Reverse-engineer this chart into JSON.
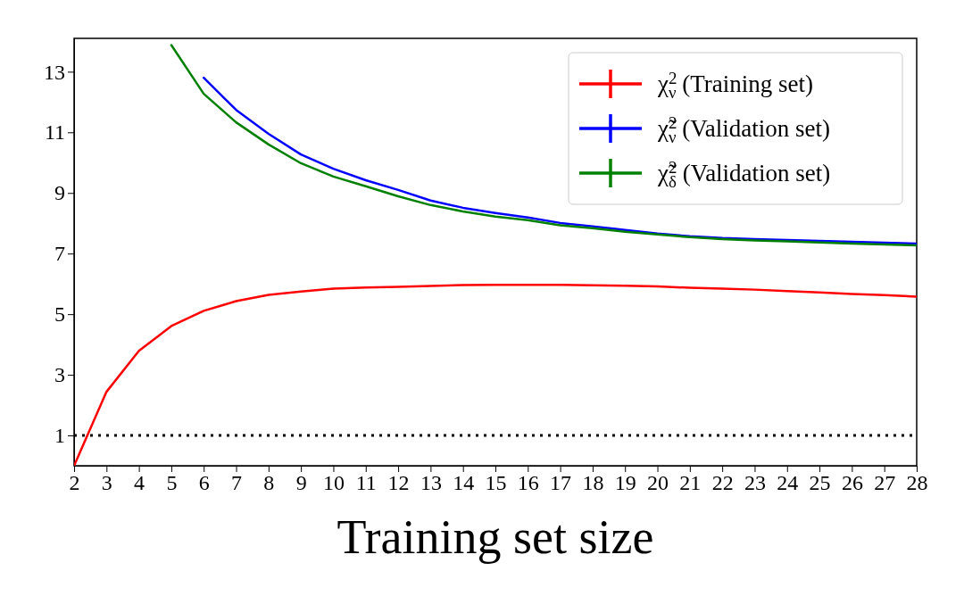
{
  "chart_data": {
    "type": "line",
    "xlabel": "Training set size",
    "x": [
      2,
      3,
      4,
      5,
      6,
      7,
      8,
      9,
      10,
      11,
      12,
      13,
      14,
      15,
      16,
      17,
      18,
      19,
      20,
      21,
      22,
      23,
      24,
      25,
      26,
      27,
      28
    ],
    "xlim": [
      2,
      28
    ],
    "xticks": [
      2,
      3,
      4,
      5,
      6,
      7,
      8,
      9,
      10,
      11,
      12,
      13,
      14,
      15,
      16,
      17,
      18,
      19,
      20,
      21,
      22,
      23,
      24,
      25,
      26,
      27,
      28
    ],
    "ylim": [
      0,
      14.1
    ],
    "yticks": [
      1,
      3,
      5,
      7,
      9,
      11,
      13
    ],
    "series": [
      {
        "name": "χ$^{2}$$_{ν}$ (Training set)",
        "color": "#ff0000",
        "values": [
          0.0,
          2.44,
          3.79,
          4.61,
          5.11,
          5.43,
          5.64,
          5.75,
          5.84,
          5.88,
          5.9,
          5.93,
          5.96,
          5.97,
          5.97,
          5.97,
          5.95,
          5.94,
          5.92,
          5.87,
          5.84,
          5.81,
          5.76,
          5.72,
          5.67,
          5.63,
          5.58
        ]
      },
      {
        "name": "χ̃$^{2}$$_{ν}$ (Validation set)",
        "color": "#0000ff",
        "values": [
          null,
          null,
          null,
          null,
          12.8,
          11.74,
          10.95,
          10.27,
          9.8,
          9.42,
          9.1,
          8.75,
          8.51,
          8.34,
          8.19,
          8.01,
          7.9,
          7.78,
          7.66,
          7.57,
          7.51,
          7.48,
          7.45,
          7.42,
          7.39,
          7.36,
          7.33
        ]
      },
      {
        "name": "χ̃$^{2}$$_{δ}$ (Validation set)",
        "color": "#008000",
        "values": [
          null,
          null,
          null,
          13.88,
          12.27,
          11.33,
          10.6,
          9.98,
          9.54,
          9.22,
          8.89,
          8.6,
          8.39,
          8.22,
          8.1,
          7.93,
          7.84,
          7.72,
          7.63,
          7.54,
          7.48,
          7.43,
          7.4,
          7.37,
          7.33,
          7.3,
          7.27
        ]
      }
    ],
    "ref_lines": [
      {
        "axis": "y",
        "value": 1,
        "color": "#000000",
        "line_style": "dotted"
      }
    ],
    "legend": "top right",
    "grid": false,
    "marker": "none",
    "line_style": "solid"
  }
}
